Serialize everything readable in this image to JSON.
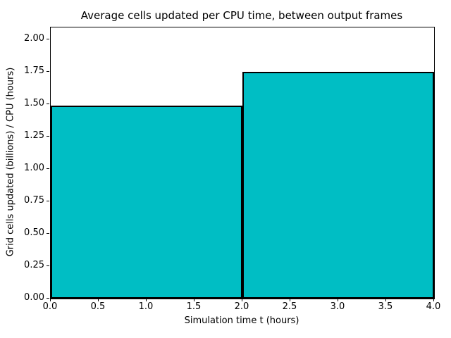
{
  "chart_data": {
    "type": "bar",
    "title": "Average cells updated per CPU time, between output frames",
    "xlabel": "Simulation time t (hours)",
    "ylabel": "Grid cells updated (billions) / CPU (hours)",
    "bars": [
      {
        "x_start": 0.0,
        "x_end": 2.0,
        "value": 1.49
      },
      {
        "x_start": 2.0,
        "x_end": 4.0,
        "value": 1.75
      }
    ],
    "xlim": [
      0.0,
      4.0
    ],
    "ylim": [
      0.0,
      2.09
    ],
    "x_tick_values": [
      0.0,
      0.5,
      1.0,
      1.5,
      2.0,
      2.5,
      3.0,
      3.5,
      4.0
    ],
    "x_tick_labels": [
      "0.0",
      "0.5",
      "1.0",
      "1.5",
      "2.0",
      "2.5",
      "3.0",
      "3.5",
      "4.0"
    ],
    "y_tick_values": [
      0.0,
      0.25,
      0.5,
      0.75,
      1.0,
      1.25,
      1.5,
      1.75,
      2.0
    ],
    "y_tick_labels": [
      "0.00",
      "0.25",
      "0.50",
      "0.75",
      "1.00",
      "1.25",
      "1.50",
      "1.75",
      "2.00"
    ],
    "bar_fill_color": "#00bec4",
    "bar_edge_color": "#000000",
    "grid": "off",
    "legend": "none"
  }
}
